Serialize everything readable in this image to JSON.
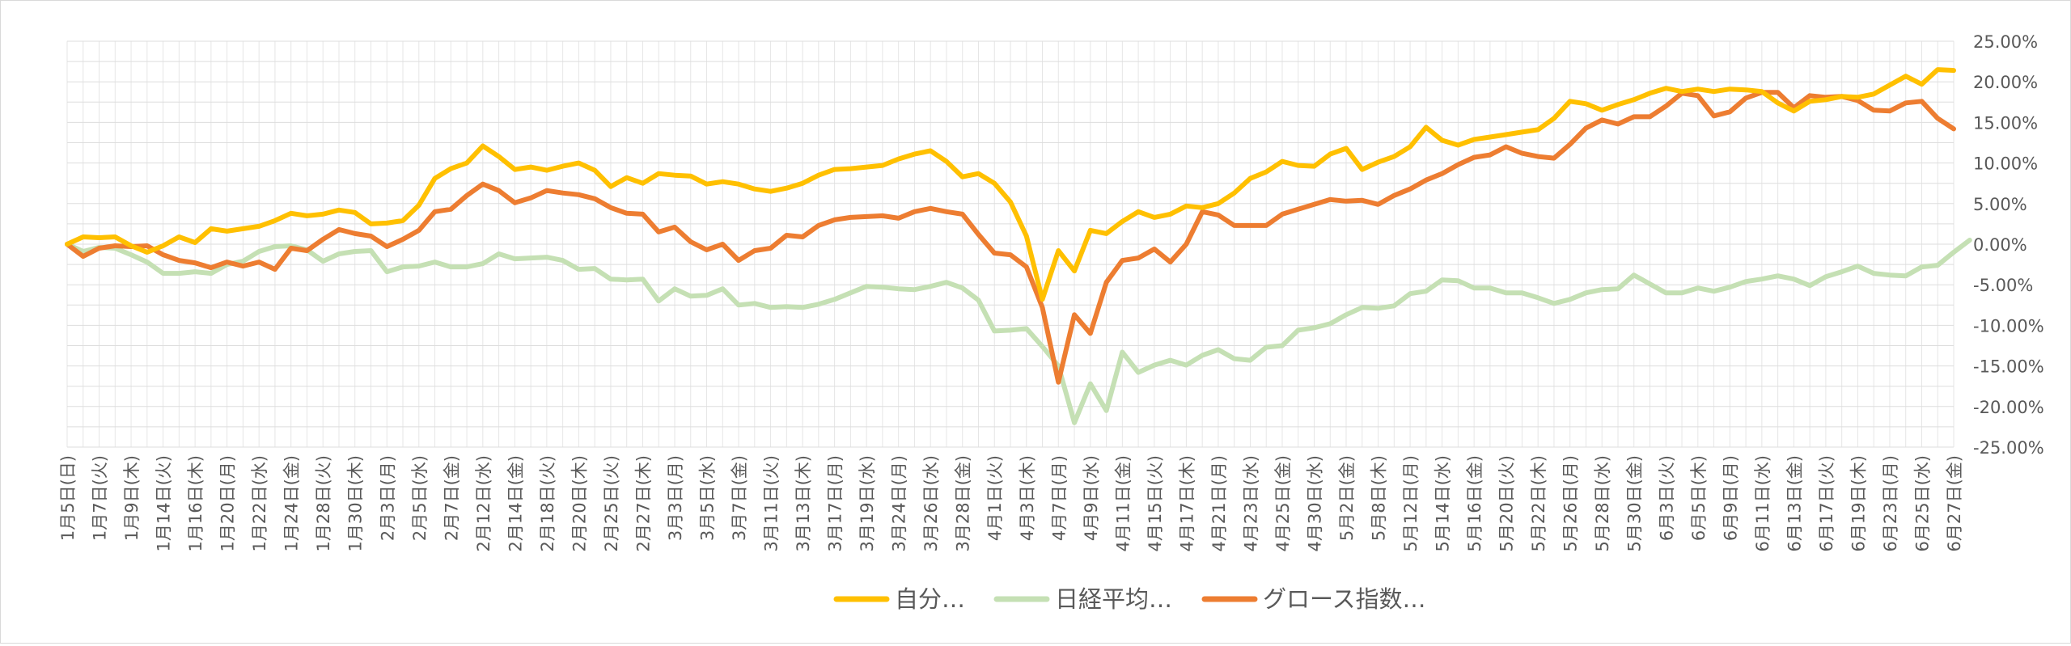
{
  "chart_data": {
    "type": "line",
    "title": "",
    "xlabel": "",
    "ylabel": "",
    "ylim": [
      -0.25,
      0.25
    ],
    "y_ticks": [
      "25.00%",
      "20.00%",
      "15.00%",
      "10.00%",
      "5.00%",
      "0.00%",
      "-5.00%",
      "-10.00%",
      "-15.00%",
      "-20.00%",
      "-25.00%"
    ],
    "y_axis_side": "right",
    "grid": true,
    "legend_position": "bottom",
    "x_tick_labels": [
      "1月5日(日)",
      "1月7日(火)",
      "1月9日(木)",
      "1月14日(火)",
      "1月16日(木)",
      "1月20日(月)",
      "1月22日(水)",
      "1月24日(金)",
      "1月28日(火)",
      "1月30日(木)",
      "2月3日(月)",
      "2月5日(水)",
      "2月7日(金)",
      "2月12日(水)",
      "2月14日(金)",
      "2月18日(火)",
      "2月20日(木)",
      "2月25日(火)",
      "2月27日(木)",
      "3月3日(月)",
      "3月5日(水)",
      "3月7日(金)",
      "3月11日(火)",
      "3月13日(木)",
      "3月17日(月)",
      "3月19日(水)",
      "3月24日(月)",
      "3月26日(水)",
      "3月28日(金)",
      "4月1日(火)",
      "4月3日(木)",
      "4月7日(月)",
      "4月9日(水)",
      "4月11日(金)",
      "4月15日(火)",
      "4月17日(木)",
      "4月21日(月)",
      "4月23日(水)",
      "4月25日(金)",
      "4月30日(水)",
      "5月2日(金)",
      "5月8日(木)",
      "5月12日(月)",
      "5月14日(水)",
      "5月16日(金)",
      "5月20日(火)",
      "5月22日(木)",
      "5月26日(月)",
      "5月28日(水)",
      "5月30日(金)",
      "6月3日(火)",
      "6月5日(木)",
      "6月9日(月)",
      "6月11日(水)",
      "6月13日(金)",
      "6月17日(火)",
      "6月19日(木)",
      "6月23日(月)",
      "6月25日(水)",
      "6月27日(金)"
    ],
    "series": [
      {
        "name": "自分…",
        "color": "#FFC000",
        "values": [
          0,
          0.009,
          0.008,
          0.009,
          -0.002,
          -0.01,
          -0.002,
          0.009,
          0.002,
          0.019,
          0.016,
          0.019,
          0.022,
          0.029,
          0.038,
          0.035,
          0.037,
          0.042,
          0.039,
          0.025,
          0.026,
          0.029,
          0.048,
          0.081,
          0.093,
          0.1,
          0.121,
          0.108,
          0.092,
          0.095,
          0.091,
          0.096,
          0.1,
          0.091,
          0.071,
          0.082,
          0.075,
          0.087,
          0.085,
          0.084,
          0.074,
          0.077,
          0.074,
          0.068,
          0.065,
          0.069,
          0.075,
          0.085,
          0.092,
          0.093,
          0.095,
          0.097,
          0.105,
          0.111,
          0.115,
          0.102,
          0.083,
          0.087,
          0.075,
          0.052,
          0.01,
          -0.068,
          -0.008,
          -0.033,
          0.017,
          0.013,
          0.028,
          0.04,
          0.033,
          0.037,
          0.047,
          0.045,
          0.05,
          0.063,
          0.081,
          0.089,
          0.102,
          0.097,
          0.096,
          0.111,
          0.118,
          0.092,
          0.101,
          0.108,
          0.12,
          0.144,
          0.128,
          0.122,
          0.129,
          0.132,
          0.135,
          0.138,
          0.141,
          0.155,
          0.176,
          0.173,
          0.165,
          0.172,
          0.178,
          0.186,
          0.192,
          0.188,
          0.191,
          0.188,
          0.191,
          0.19,
          0.188,
          0.174,
          0.164,
          0.176,
          0.178,
          0.182,
          0.181,
          0.185,
          0.196,
          0.207,
          0.197,
          0.215,
          0.214
        ]
      },
      {
        "name": "日経平均…",
        "color": "#C5E0B4",
        "values": [
          0,
          -0.009,
          -0.004,
          -0.005,
          -0.013,
          -0.022,
          -0.036,
          -0.036,
          -0.034,
          -0.036,
          -0.025,
          -0.021,
          -0.009,
          -0.003,
          -0.002,
          -0.007,
          -0.021,
          -0.012,
          -0.009,
          -0.008,
          -0.034,
          -0.028,
          -0.027,
          -0.022,
          -0.028,
          -0.028,
          -0.024,
          -0.012,
          -0.018,
          -0.017,
          -0.016,
          -0.02,
          -0.031,
          -0.03,
          -0.043,
          -0.044,
          -0.043,
          -0.07,
          -0.055,
          -0.064,
          -0.063,
          -0.055,
          -0.075,
          -0.073,
          -0.078,
          -0.077,
          -0.078,
          -0.074,
          -0.068,
          -0.06,
          -0.052,
          -0.053,
          -0.055,
          -0.056,
          -0.052,
          -0.047,
          -0.054,
          -0.069,
          -0.107,
          -0.106,
          -0.104,
          -0.126,
          -0.15,
          -0.22,
          -0.172,
          -0.205,
          -0.133,
          -0.158,
          -0.149,
          -0.143,
          -0.149,
          -0.137,
          -0.13,
          -0.141,
          -0.143,
          -0.127,
          -0.125,
          -0.106,
          -0.103,
          -0.098,
          -0.087,
          -0.078,
          -0.079,
          -0.076,
          -0.061,
          -0.058,
          -0.044,
          -0.045,
          -0.054,
          -0.054,
          -0.06,
          -0.06,
          -0.066,
          -0.073,
          -0.068,
          -0.06,
          -0.056,
          -0.055,
          -0.038,
          -0.049,
          -0.06,
          -0.06,
          -0.054,
          -0.058,
          -0.053,
          -0.046,
          -0.043,
          -0.039,
          -0.043,
          -0.051,
          -0.04,
          -0.034,
          -0.027,
          -0.036,
          -0.038,
          -0.039,
          -0.028,
          -0.026,
          -0.01,
          0.005
        ]
      },
      {
        "name": "グロース指数…",
        "color": "#ED7D31",
        "values": [
          0,
          -0.015,
          -0.005,
          -0.002,
          -0.003,
          -0.002,
          -0.013,
          -0.02,
          -0.023,
          -0.029,
          -0.022,
          -0.027,
          -0.022,
          -0.031,
          -0.005,
          -0.008,
          0.006,
          0.018,
          0.013,
          0.01,
          -0.003,
          0.006,
          0.017,
          0.04,
          0.043,
          0.06,
          0.074,
          0.066,
          0.051,
          0.057,
          0.066,
          0.063,
          0.061,
          0.056,
          0.045,
          0.038,
          0.037,
          0.015,
          0.021,
          0.003,
          -0.007,
          0.0,
          -0.02,
          -0.008,
          -0.005,
          0.011,
          0.009,
          0.023,
          0.03,
          0.033,
          0.034,
          0.035,
          0.032,
          0.04,
          0.044,
          0.04,
          0.037,
          0.012,
          -0.011,
          -0.013,
          -0.028,
          -0.078,
          -0.17,
          -0.087,
          -0.11,
          -0.047,
          -0.02,
          -0.017,
          -0.006,
          -0.022,
          0.0,
          0.04,
          0.036,
          0.023,
          0.023,
          0.023,
          0.037,
          0.043,
          0.049,
          0.055,
          0.053,
          0.054,
          0.049,
          0.06,
          0.068,
          0.079,
          0.087,
          0.098,
          0.107,
          0.11,
          0.12,
          0.112,
          0.108,
          0.106,
          0.123,
          0.143,
          0.153,
          0.148,
          0.157,
          0.157,
          0.17,
          0.186,
          0.183,
          0.158,
          0.163,
          0.18,
          0.187,
          0.187,
          0.168,
          0.183,
          0.181,
          0.182,
          0.177,
          0.165,
          0.164,
          0.174,
          0.176,
          0.155,
          0.142
        ]
      }
    ]
  }
}
